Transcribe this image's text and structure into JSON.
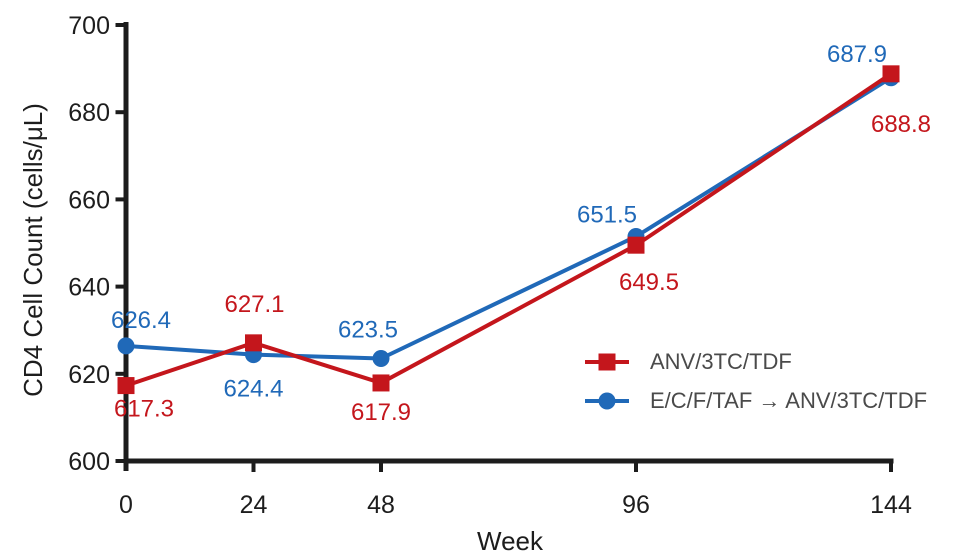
{
  "page": {
    "background": "#ffffff"
  },
  "chart_data": {
    "type": "line",
    "title": "",
    "xlabel": "Week",
    "ylabel": "CD4 Cell Count (cells/μL)",
    "x": [
      0,
      24,
      48,
      96,
      144
    ],
    "x_tick_labels": [
      "0",
      "24",
      "48",
      "96",
      "144"
    ],
    "xlim": [
      0,
      144
    ],
    "ylim": [
      600,
      700
    ],
    "y_ticks": [
      600,
      620,
      640,
      660,
      680,
      700
    ],
    "y_tick_labels": [
      "600",
      "620",
      "640",
      "660",
      "680",
      "700"
    ],
    "grid": false,
    "legend_position": "inside lower right",
    "axis_color": "#1c1c1c",
    "tick_text_color": "#1d1d1d",
    "legend_text_color": "#4a4a4a",
    "series": [
      {
        "name": "ANV/3TC/TDF",
        "color": "#c4161c",
        "marker": "square",
        "values": [
          617.3,
          627.1,
          617.9,
          649.5,
          688.8
        ],
        "point_labels": [
          "617.3",
          "627.1",
          "617.9",
          "649.5",
          "688.8"
        ],
        "label_offsets": [
          [
            18,
            23
          ],
          [
            1,
            -39
          ],
          [
            0,
            29
          ],
          [
            13,
            37
          ],
          [
            10,
            50
          ]
        ]
      },
      {
        "name": "E/C/F/TAF → ANV/3TC/TDF",
        "color": "#2069b8",
        "marker": "circle",
        "values": [
          626.4,
          624.4,
          623.5,
          651.5,
          687.9
        ],
        "point_labels": [
          "626.4",
          "624.4",
          "623.5",
          "651.5",
          "687.9"
        ],
        "label_offsets": [
          [
            15,
            -26
          ],
          [
            0,
            34
          ],
          [
            -13,
            -29
          ],
          [
            -29,
            -22
          ],
          [
            -34,
            -24
          ]
        ]
      }
    ]
  }
}
